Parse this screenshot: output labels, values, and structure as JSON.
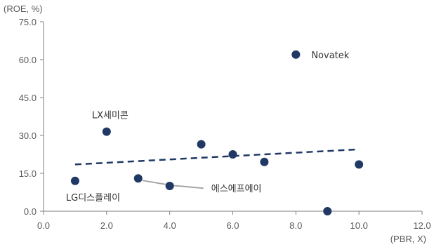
{
  "chart_data": {
    "type": "scatter",
    "y_unit_label": "(ROE, %)",
    "x_unit_label": "(PBR, X)",
    "xlim": [
      0,
      12
    ],
    "ylim": [
      0,
      75
    ],
    "x_ticks": [
      "0.0",
      "2.0",
      "4.0",
      "6.0",
      "8.0",
      "10.0",
      "12.0"
    ],
    "y_ticks": [
      "0.0",
      "15.0",
      "30.0",
      "45.0",
      "60.0",
      "75.0"
    ],
    "grid": false,
    "points": [
      {
        "x": 1.0,
        "y": 12.0,
        "label": "LG디스플레이"
      },
      {
        "x": 2.0,
        "y": 31.5,
        "label": "LX세미콘"
      },
      {
        "x": 3.0,
        "y": 13.0,
        "label": "에스에프에이"
      },
      {
        "x": 4.0,
        "y": 10.0,
        "label": ""
      },
      {
        "x": 5.0,
        "y": 26.5,
        "label": ""
      },
      {
        "x": 6.0,
        "y": 22.5,
        "label": ""
      },
      {
        "x": 7.0,
        "y": 19.5,
        "label": ""
      },
      {
        "x": 8.0,
        "y": 62.0,
        "label": "Novatek"
      },
      {
        "x": 9.0,
        "y": 0.0,
        "label": ""
      },
      {
        "x": 10.0,
        "y": 18.5,
        "label": ""
      }
    ],
    "trendline": {
      "style": "dashed",
      "x": [
        1.0,
        10.0
      ],
      "y": [
        18.5,
        24.5
      ]
    },
    "colors": {
      "marker": "#1f3864",
      "trend": "#1f3864",
      "leader": "#a6a6a6",
      "axis": "#7f7f7f",
      "text": "#595959"
    }
  }
}
